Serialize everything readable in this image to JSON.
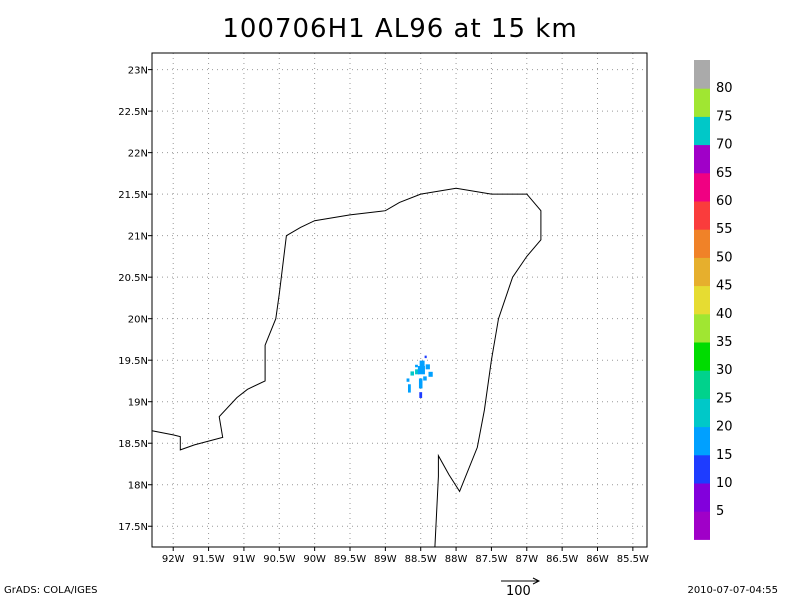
{
  "title": "100706H1 AL96 at 15 km",
  "map": {
    "lon_range": [
      -92.3,
      -85.3
    ],
    "lat_range": [
      17.25,
      23.2
    ],
    "lon_ticks": [
      {
        "v": -92.0,
        "label": "92W"
      },
      {
        "v": -91.5,
        "label": "91.5W"
      },
      {
        "v": -91.0,
        "label": "91W"
      },
      {
        "v": -90.5,
        "label": "90.5W"
      },
      {
        "v": -90.0,
        "label": "90W"
      },
      {
        "v": -89.5,
        "label": "89.5W"
      },
      {
        "v": -89.0,
        "label": "89W"
      },
      {
        "v": -88.5,
        "label": "88.5W"
      },
      {
        "v": -88.0,
        "label": "88W"
      },
      {
        "v": -87.5,
        "label": "87.5W"
      },
      {
        "v": -87.0,
        "label": "87W"
      },
      {
        "v": -86.5,
        "label": "86.5W"
      },
      {
        "v": -86.0,
        "label": "86W"
      },
      {
        "v": -85.5,
        "label": "85.5W"
      }
    ],
    "lat_ticks": [
      {
        "v": 17.5,
        "label": "17.5N"
      },
      {
        "v": 18.0,
        "label": "18N"
      },
      {
        "v": 18.5,
        "label": "18.5N"
      },
      {
        "v": 19.0,
        "label": "19N"
      },
      {
        "v": 19.5,
        "label": "19.5N"
      },
      {
        "v": 20.0,
        "label": "20N"
      },
      {
        "v": 20.5,
        "label": "20.5N"
      },
      {
        "v": 21.0,
        "label": "21N"
      },
      {
        "v": 21.5,
        "label": "21.5N"
      },
      {
        "v": 22.0,
        "label": "22N"
      },
      {
        "v": 22.5,
        "label": "22.5N"
      },
      {
        "v": 23.0,
        "label": "23N"
      }
    ],
    "gridlines": true,
    "coastline": [
      [
        -92.3,
        18.65
      ],
      [
        -92.0,
        18.6
      ],
      [
        -91.9,
        18.58
      ],
      [
        -91.9,
        18.42
      ],
      [
        -91.7,
        18.48
      ],
      [
        -91.3,
        18.57
      ],
      [
        -91.35,
        18.82
      ],
      [
        -91.1,
        19.05
      ],
      [
        -90.95,
        19.15
      ],
      [
        -90.7,
        19.25
      ],
      [
        -90.7,
        19.68
      ],
      [
        -90.55,
        20.0
      ],
      [
        -90.5,
        20.3
      ],
      [
        -90.4,
        21.0
      ],
      [
        -90.2,
        21.1
      ],
      [
        -90.0,
        21.18
      ],
      [
        -89.5,
        21.25
      ],
      [
        -89.0,
        21.3
      ],
      [
        -88.8,
        21.4
      ],
      [
        -88.5,
        21.5
      ],
      [
        -88.0,
        21.57
      ],
      [
        -87.5,
        21.5
      ],
      [
        -87.0,
        21.5
      ],
      [
        -86.8,
        21.3
      ],
      [
        -86.8,
        20.95
      ],
      [
        -87.0,
        20.75
      ],
      [
        -87.2,
        20.5
      ],
      [
        -87.4,
        20.0
      ],
      [
        -87.5,
        19.5
      ],
      [
        -87.6,
        18.9
      ],
      [
        -87.7,
        18.45
      ],
      [
        -87.95,
        17.92
      ],
      [
        -88.1,
        18.12
      ],
      [
        -88.25,
        18.35
      ],
      [
        -88.25,
        18.1
      ],
      [
        -88.3,
        17.25
      ]
    ],
    "echoes": [
      {
        "lon": -88.55,
        "lat": 19.36,
        "w": 0.06,
        "h": 0.06,
        "dbz": 20
      },
      {
        "lon": -88.62,
        "lat": 19.34,
        "w": 0.05,
        "h": 0.05,
        "dbz": 20
      },
      {
        "lon": -88.49,
        "lat": 19.38,
        "w": 0.1,
        "h": 0.1,
        "dbz": 15
      },
      {
        "lon": -88.48,
        "lat": 19.46,
        "w": 0.07,
        "h": 0.07,
        "dbz": 15
      },
      {
        "lon": -88.4,
        "lat": 19.42,
        "w": 0.06,
        "h": 0.06,
        "dbz": 15
      },
      {
        "lon": -88.36,
        "lat": 19.33,
        "w": 0.06,
        "h": 0.06,
        "dbz": 15
      },
      {
        "lon": -88.5,
        "lat": 19.22,
        "w": 0.05,
        "h": 0.12,
        "dbz": 15
      },
      {
        "lon": -88.5,
        "lat": 19.08,
        "w": 0.04,
        "h": 0.07,
        "dbz": 10
      },
      {
        "lon": -88.44,
        "lat": 19.28,
        "w": 0.05,
        "h": 0.05,
        "dbz": 15
      },
      {
        "lon": -88.68,
        "lat": 19.26,
        "w": 0.04,
        "h": 0.04,
        "dbz": 15
      },
      {
        "lon": -88.66,
        "lat": 19.16,
        "w": 0.04,
        "h": 0.1,
        "dbz": 15
      },
      {
        "lon": -88.43,
        "lat": 19.54,
        "w": 0.03,
        "h": 0.03,
        "dbz": 10
      },
      {
        "lon": -88.56,
        "lat": 19.43,
        "w": 0.04,
        "h": 0.03,
        "dbz": 15
      }
    ]
  },
  "colorbar": {
    "colors": [
      "#a000c8",
      "#8200dc",
      "#1e3cff",
      "#00a0ff",
      "#00c8c8",
      "#00d28c",
      "#00dc00",
      "#a0e632",
      "#e6dc32",
      "#e6af2d",
      "#f08228",
      "#fa3c3c",
      "#f00082",
      "#a000c8",
      "#00c8c8",
      "#a0e632",
      "#aaaaaa"
    ],
    "labels": [
      "5",
      "10",
      "15",
      "20",
      "25",
      "30",
      "35",
      "40",
      "45",
      "50",
      "55",
      "60",
      "65",
      "70",
      "75",
      "80"
    ]
  },
  "footer": {
    "credit": "GrADS: COLA/IGES",
    "timestamp": "2010-07-07-04:55",
    "vector_label": "100"
  }
}
